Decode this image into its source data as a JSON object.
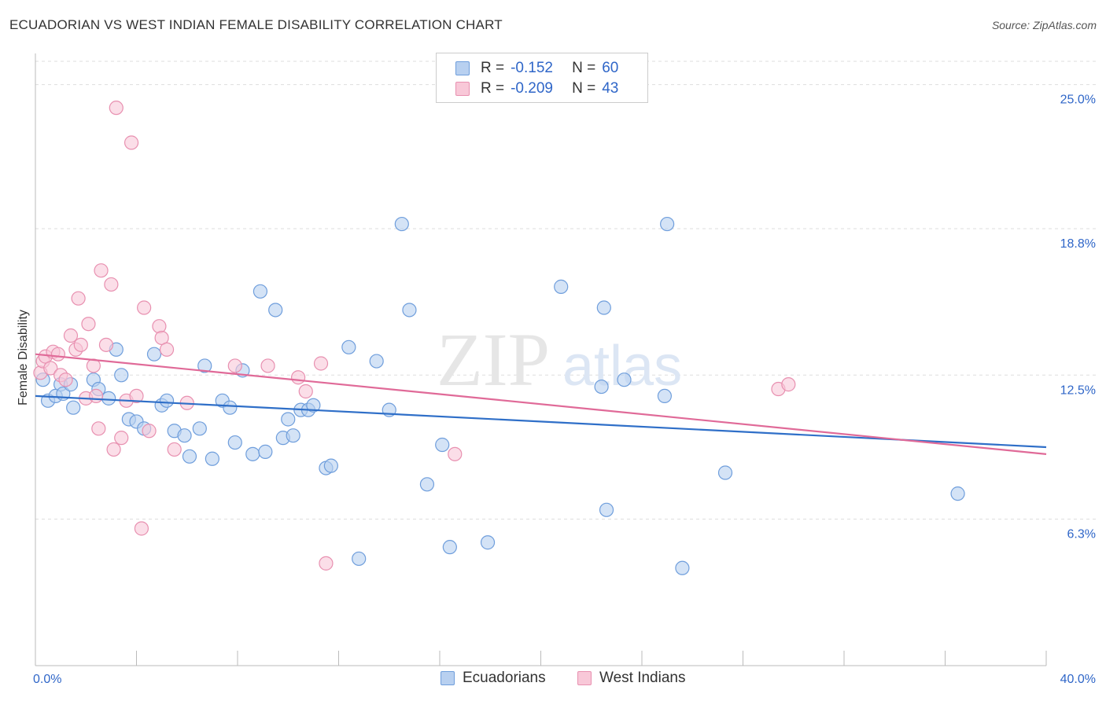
{
  "title": "ECUADORIAN VS WEST INDIAN FEMALE DISABILITY CORRELATION CHART",
  "source": "Source: ZipAtlas.com",
  "watermark": {
    "zip": "ZIP",
    "atlas": "atlas"
  },
  "colors": {
    "blue_fill": "#b8d0f0",
    "blue_stroke": "#6f9edc",
    "blue_line": "#2f6fc8",
    "pink_fill": "#f8c8d8",
    "pink_stroke": "#e890b0",
    "pink_line": "#e06a98",
    "axis_text": "#2f66c8",
    "grid": "#dddddd"
  },
  "legend": [
    {
      "r_label": "R = ",
      "r_value": "-0.152",
      "n_label": "N = ",
      "n_value": "60"
    },
    {
      "r_label": "R = ",
      "r_value": "-0.209",
      "n_label": "N = ",
      "n_value": "43"
    }
  ],
  "chart_data": {
    "type": "scatter",
    "title": "ECUADORIAN VS WEST INDIAN FEMALE DISABILITY CORRELATION CHART",
    "xlabel": "",
    "ylabel": "Female Disability",
    "xlim": [
      0,
      40
    ],
    "ylim": [
      0,
      26
    ],
    "x_tick_labels": [
      "0.0%",
      "40.0%"
    ],
    "y_ticks": [
      6.3,
      12.5,
      18.8,
      25.0
    ],
    "y_tick_labels": [
      "6.3%",
      "12.5%",
      "18.8%",
      "25.0%"
    ],
    "series": [
      {
        "name": "Ecuadorians",
        "color": "#b8d0f0",
        "trend": {
          "x": [
            0,
            40
          ],
          "y": [
            11.6,
            9.4
          ]
        },
        "points": [
          [
            0.3,
            12.3
          ],
          [
            0.5,
            11.4
          ],
          [
            0.8,
            11.6
          ],
          [
            1.0,
            12.1
          ],
          [
            1.1,
            11.7
          ],
          [
            1.4,
            12.1
          ],
          [
            1.5,
            11.1
          ],
          [
            2.3,
            12.3
          ],
          [
            2.5,
            11.9
          ],
          [
            2.9,
            11.5
          ],
          [
            3.2,
            13.6
          ],
          [
            3.4,
            12.5
          ],
          [
            3.7,
            10.6
          ],
          [
            4.0,
            10.5
          ],
          [
            4.3,
            10.2
          ],
          [
            4.7,
            13.4
          ],
          [
            5.0,
            11.2
          ],
          [
            5.2,
            11.4
          ],
          [
            5.5,
            10.1
          ],
          [
            5.9,
            9.9
          ],
          [
            6.1,
            9.0
          ],
          [
            6.5,
            10.2
          ],
          [
            6.7,
            12.9
          ],
          [
            7.0,
            8.9
          ],
          [
            7.4,
            11.4
          ],
          [
            7.7,
            11.1
          ],
          [
            7.9,
            9.6
          ],
          [
            8.2,
            12.7
          ],
          [
            8.6,
            9.1
          ],
          [
            8.9,
            16.1
          ],
          [
            9.1,
            9.2
          ],
          [
            9.5,
            15.3
          ],
          [
            9.8,
            9.8
          ],
          [
            10.0,
            10.6
          ],
          [
            10.2,
            9.9
          ],
          [
            10.5,
            11.0
          ],
          [
            10.8,
            11.0
          ],
          [
            11.0,
            11.2
          ],
          [
            11.5,
            8.5
          ],
          [
            11.7,
            8.6
          ],
          [
            12.4,
            13.7
          ],
          [
            12.8,
            4.6
          ],
          [
            13.5,
            13.1
          ],
          [
            14.0,
            11.0
          ],
          [
            14.5,
            19.0
          ],
          [
            14.8,
            15.3
          ],
          [
            15.5,
            7.8
          ],
          [
            16.1,
            9.5
          ],
          [
            16.4,
            5.1
          ],
          [
            17.9,
            5.3
          ],
          [
            20.8,
            16.3
          ],
          [
            22.4,
            12.0
          ],
          [
            22.5,
            15.4
          ],
          [
            22.6,
            6.7
          ],
          [
            23.3,
            12.3
          ],
          [
            24.9,
            11.6
          ],
          [
            25.0,
            19.0
          ],
          [
            25.6,
            4.2
          ],
          [
            27.3,
            8.3
          ],
          [
            36.5,
            7.4
          ]
        ]
      },
      {
        "name": "West Indians",
        "color": "#f8c8d8",
        "trend": {
          "x": [
            0,
            40
          ],
          "y": [
            13.4,
            9.1
          ]
        },
        "points": [
          [
            0.2,
            12.6
          ],
          [
            0.3,
            13.1
          ],
          [
            0.4,
            13.3
          ],
          [
            0.6,
            12.8
          ],
          [
            0.7,
            13.5
          ],
          [
            0.9,
            13.4
          ],
          [
            1.0,
            12.5
          ],
          [
            1.2,
            12.3
          ],
          [
            1.4,
            14.2
          ],
          [
            1.6,
            13.6
          ],
          [
            1.7,
            15.8
          ],
          [
            1.8,
            13.8
          ],
          [
            2.0,
            11.5
          ],
          [
            2.1,
            14.7
          ],
          [
            2.3,
            12.9
          ],
          [
            2.4,
            11.6
          ],
          [
            2.5,
            10.2
          ],
          [
            2.6,
            17.0
          ],
          [
            2.8,
            13.8
          ],
          [
            3.0,
            16.4
          ],
          [
            3.1,
            9.3
          ],
          [
            3.2,
            24.0
          ],
          [
            3.4,
            9.8
          ],
          [
            3.6,
            11.4
          ],
          [
            3.8,
            22.5
          ],
          [
            4.0,
            11.6
          ],
          [
            4.2,
            5.9
          ],
          [
            4.3,
            15.4
          ],
          [
            4.5,
            10.1
          ],
          [
            4.9,
            14.6
          ],
          [
            5.0,
            14.1
          ],
          [
            5.2,
            13.6
          ],
          [
            5.5,
            9.3
          ],
          [
            6.0,
            11.3
          ],
          [
            7.9,
            12.9
          ],
          [
            9.2,
            12.9
          ],
          [
            10.4,
            12.4
          ],
          [
            10.7,
            11.8
          ],
          [
            11.3,
            13.0
          ],
          [
            11.5,
            4.4
          ],
          [
            16.6,
            9.1
          ],
          [
            29.4,
            11.9
          ],
          [
            29.8,
            12.1
          ]
        ]
      }
    ]
  }
}
